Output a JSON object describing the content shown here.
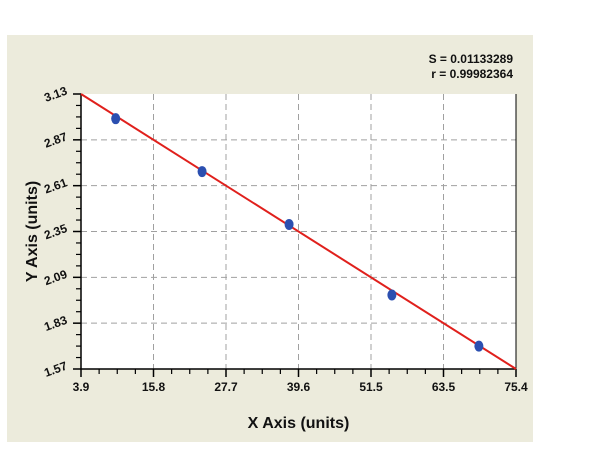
{
  "stats": {
    "s_label": "S = 0.01133289",
    "r_label": "r = 0.99982364"
  },
  "colors": {
    "panel_bg": "#ecebdc",
    "plot_bg": "#ffffff",
    "fit_line": "#e0201c",
    "points": "#2b4fb0",
    "grid": "#a0a0a0"
  },
  "chart_data": {
    "type": "scatter",
    "title": "",
    "xlabel": "X Axis (units)",
    "ylabel": "Y Axis (units)",
    "xlim": [
      3.9,
      75.4
    ],
    "ylim": [
      1.57,
      3.13
    ],
    "x_ticks": [
      "3.9",
      "15.8",
      "27.7",
      "39.6",
      "51.5",
      "63.5",
      "75.4"
    ],
    "y_ticks": [
      "1.57",
      "1.83",
      "2.09",
      "2.35",
      "2.61",
      "2.87",
      "3.13"
    ],
    "grid": true,
    "legend": null,
    "series": [
      {
        "name": "data points",
        "x": [
          9.6,
          23.8,
          38.1,
          55.0,
          69.3
        ],
        "y": [
          2.99,
          2.69,
          2.39,
          1.99,
          1.7
        ]
      }
    ],
    "fit_line": {
      "name": "linear fit",
      "x": [
        3.9,
        75.4
      ],
      "y": [
        3.13,
        1.57
      ]
    },
    "annotations": [
      "S = 0.01133289",
      "r = 0.99982364"
    ]
  }
}
